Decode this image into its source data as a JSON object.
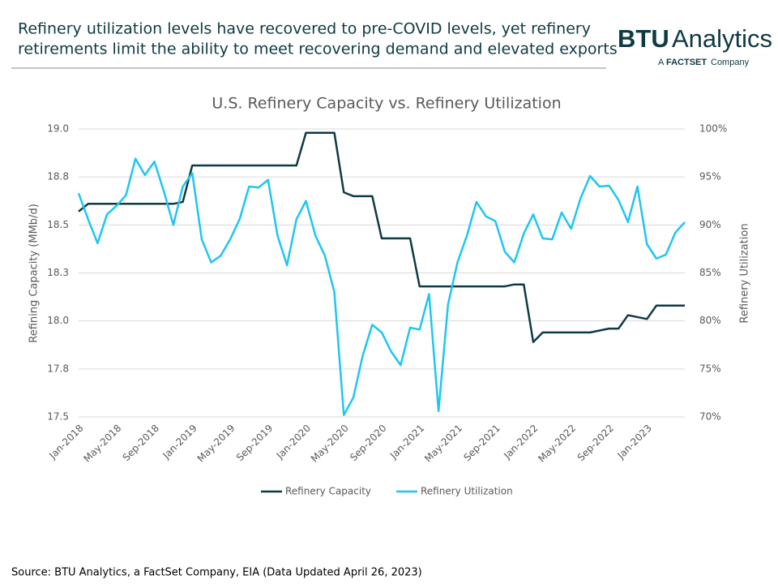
{
  "header": {
    "title_lines": [
      "Refinery utilization levels have recovered to pre-COVID levels, yet refinery",
      "retirements limit the ability to meet recovering demand and elevated exports"
    ],
    "logo": {
      "brand": "BTU",
      "name": "Analytics",
      "tagline_prefix": "A",
      "tagline_brand": "FACTSET",
      "tagline_suffix": "Company"
    }
  },
  "chart_data": {
    "type": "line",
    "title": "U.S. Refinery Capacity vs. Refinery Utilization",
    "y_label": "Refining Capacity (MMb/d)",
    "y2_label": "Refinery Utilization",
    "categories": [
      "Jan-2018",
      null,
      null,
      null,
      "May-2018",
      null,
      null,
      null,
      "Sep-2018",
      null,
      null,
      null,
      "Jan-2019",
      null,
      null,
      null,
      "May-2019",
      null,
      null,
      null,
      "Sep-2019",
      null,
      null,
      null,
      "Jan-2020",
      null,
      null,
      null,
      "May-2020",
      null,
      null,
      null,
      "Sep-2020",
      null,
      null,
      null,
      "Jan-2021",
      null,
      null,
      null,
      "May-2021",
      null,
      null,
      null,
      "Sep-2021",
      null,
      null,
      null,
      "Jan-2022",
      null,
      null,
      null,
      "May-2022",
      null,
      null,
      null,
      "Sep-2022",
      null,
      null,
      null,
      "Jan-2023",
      null,
      null,
      null,
      null
    ],
    "series": [
      {
        "name": "Refinery Capacity",
        "color": "#0e3a44",
        "values": [
          18.57,
          18.61,
          18.61,
          18.61,
          18.61,
          18.61,
          18.61,
          18.61,
          18.61,
          18.61,
          18.61,
          18.62,
          18.81,
          18.81,
          18.81,
          18.81,
          18.81,
          18.81,
          18.81,
          18.81,
          18.81,
          18.81,
          18.81,
          18.81,
          18.98,
          18.98,
          18.98,
          18.98,
          18.67,
          18.65,
          18.65,
          18.65,
          18.43,
          18.43,
          18.43,
          18.43,
          18.18,
          18.18,
          18.18,
          18.18,
          18.18,
          18.18,
          18.18,
          18.18,
          18.18,
          18.18,
          18.19,
          18.19,
          17.89,
          17.94,
          17.94,
          17.94,
          17.94,
          17.94,
          17.94,
          17.95,
          17.96,
          17.96,
          18.03,
          18.02,
          18.01,
          18.08,
          18.08,
          18.08,
          18.08
        ]
      },
      {
        "name": "Refinery Utilization",
        "color": "#1ec6f0",
        "axis": "y2",
        "values": [
          93.3,
          90.6,
          88.1,
          91.1,
          92.0,
          93.1,
          96.9,
          95.2,
          96.6,
          93.5,
          90.0,
          94.0,
          95.4,
          88.5,
          86.1,
          86.8,
          88.5,
          90.6,
          94.0,
          93.9,
          94.7,
          88.9,
          85.8,
          90.6,
          92.5,
          88.9,
          86.8,
          83.0,
          70.2,
          72.0,
          76.4,
          79.6,
          78.8,
          76.8,
          75.4,
          79.3,
          79.1,
          82.8,
          70.6,
          81.7,
          86.1,
          88.9,
          92.4,
          90.9,
          90.4,
          87.2,
          86.1,
          89.1,
          91.1,
          88.6,
          88.5,
          91.3,
          89.6,
          92.8,
          95.1,
          94.0,
          94.1,
          92.6,
          90.3,
          94.0,
          88.0,
          86.5,
          86.9,
          89.2,
          90.3
        ]
      }
    ],
    "ylim": [
      17.5,
      19.0
    ],
    "yticks": [
      17.5,
      {
        "value": 17.75,
        "label": "17.8"
      },
      {
        "value": 18.0,
        "label": "18.0"
      },
      {
        "value": 18.25,
        "label": "18.3"
      },
      18.5,
      {
        "value": 18.75,
        "label": "18.8"
      },
      {
        "value": 19.0,
        "label": "19.0"
      }
    ],
    "y2lim": [
      70,
      100
    ],
    "y2ticks": [
      {
        "value": 70,
        "label": "70%"
      },
      {
        "value": 75,
        "label": "75%"
      },
      {
        "value": 80,
        "label": "80%"
      },
      {
        "value": 85,
        "label": "85%"
      },
      {
        "value": 90,
        "label": "90%"
      },
      {
        "value": 95,
        "label": "95%"
      },
      {
        "value": 100,
        "label": "100%"
      }
    ],
    "grid": true,
    "legend": "bottom"
  },
  "source": "Source: BTU Analytics, a FactSet Company, EIA (Data Updated April 26, 2023)"
}
